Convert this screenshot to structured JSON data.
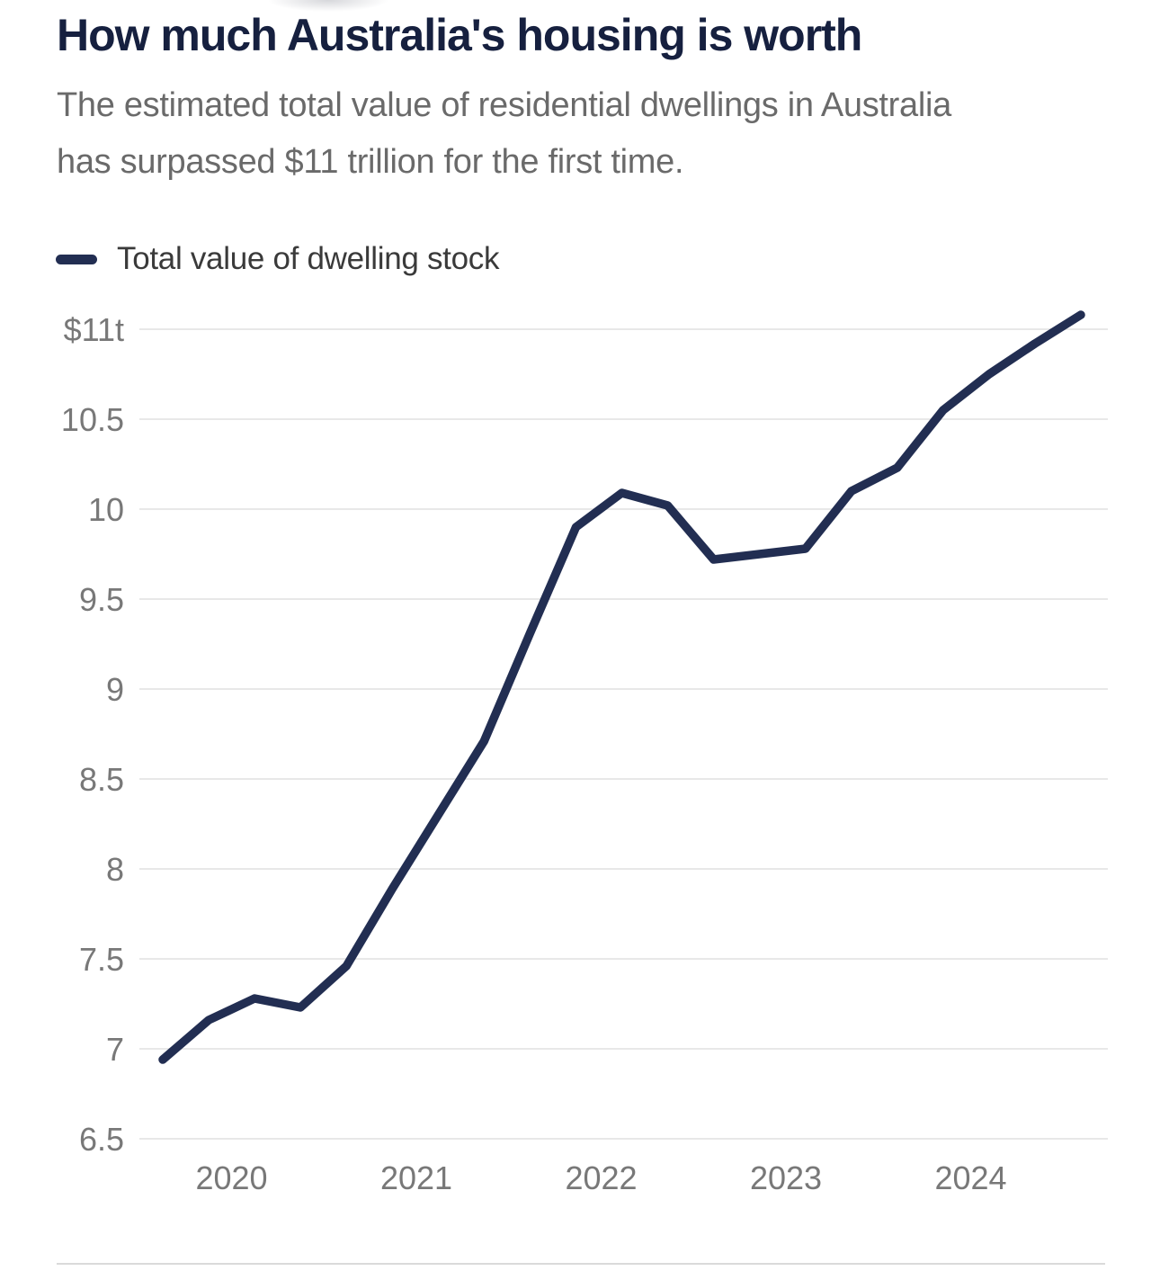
{
  "header": {
    "title": "How much Australia's housing is worth",
    "subtitle": "The estimated total value of residential dwellings in Australia has surpassed $11 trillion for the first time."
  },
  "legend": {
    "label": "Total value of dwelling stock"
  },
  "colors": {
    "title_text": "#16203f",
    "subtitle_text": "#6a6a6a",
    "line": "#222e52",
    "legend_text": "#3a3a3a",
    "axis_text": "#787878",
    "gridline": "#e8e8e8",
    "divider": "#dadada"
  },
  "chart_data": {
    "type": "line",
    "title": "How much Australia's housing is worth",
    "subtitle": "The estimated total value of residential dwellings in Australia has surpassed $11 trillion for the first time.",
    "unit": "AUD trillions",
    "legend": [
      "Total value of dwelling stock"
    ],
    "legend_position": "top-left",
    "grid": "horizontal-only",
    "x_tick_labels": [
      "2020",
      "2021",
      "2022",
      "2023",
      "2024"
    ],
    "y_axis": {
      "tick_labels": [
        "$11t",
        "10.5",
        "10",
        "9.5",
        "9",
        "8.5",
        "8",
        "7.5",
        "7",
        "6.5"
      ],
      "tick_values": [
        11,
        10.5,
        10,
        9.5,
        9,
        8.5,
        8,
        7.5,
        7,
        6.5
      ],
      "min": 6.5,
      "max": 11.3
    },
    "series": [
      {
        "name": "Total value of dwelling stock",
        "x": [
          "2019-Q3",
          "2019-Q4",
          "2020-Q1",
          "2020-Q2",
          "2020-Q3",
          "2020-Q4",
          "2021-Q1",
          "2021-Q2",
          "2021-Q3",
          "2021-Q4",
          "2022-Q1",
          "2022-Q2",
          "2022-Q3",
          "2022-Q4",
          "2023-Q1",
          "2023-Q2",
          "2023-Q3",
          "2023-Q4",
          "2024-Q1",
          "2024-Q2",
          "2024-Q3"
        ],
        "values": [
          6.94,
          7.16,
          7.28,
          7.23,
          7.46,
          7.89,
          8.3,
          8.71,
          9.31,
          9.9,
          10.09,
          10.02,
          9.72,
          9.75,
          9.78,
          10.1,
          10.23,
          10.55,
          10.75,
          10.92,
          11.08
        ]
      }
    ]
  }
}
